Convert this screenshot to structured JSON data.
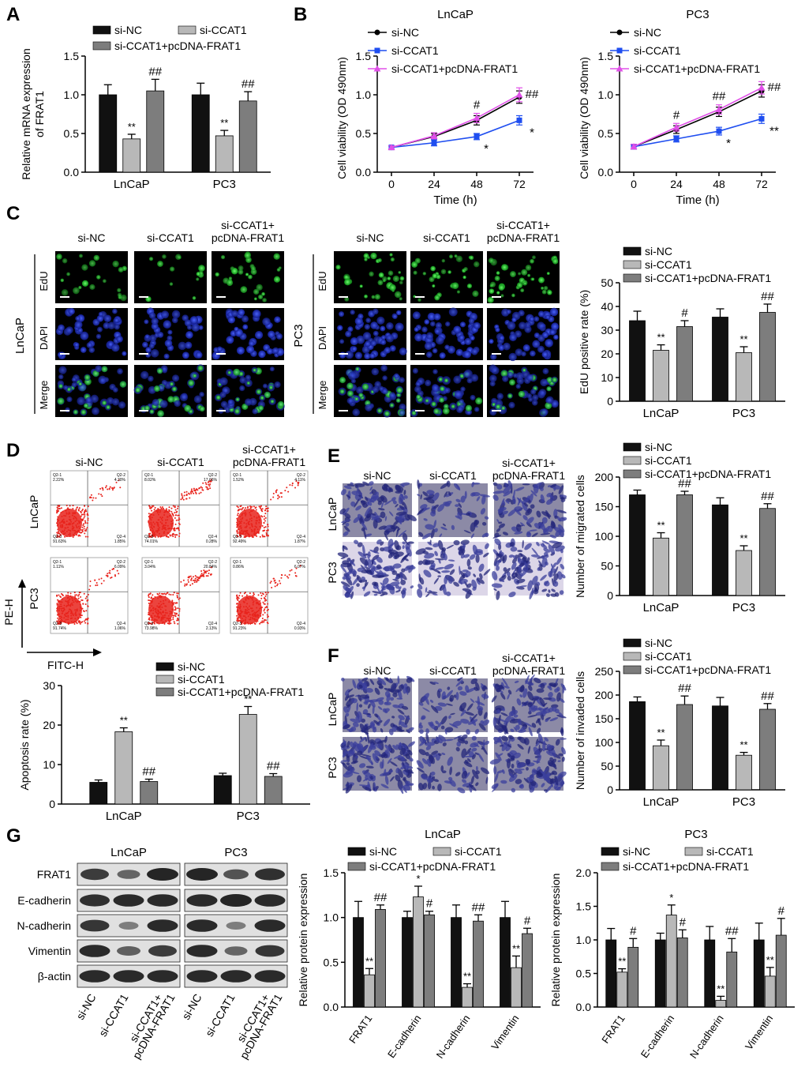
{
  "panel_labels": [
    "A",
    "B",
    "C",
    "D",
    "E",
    "F",
    "G"
  ],
  "colors": {
    "black": "#111111",
    "gray": "#b8b8b8",
    "dgray": "#7d7d7d",
    "blue": "#1f4ef0",
    "magenta": "#e050e8",
    "flow": "#e8231c"
  },
  "micrograph_labels": {
    "c_cols": [
      [
        "si-NC"
      ],
      [
        "si-CCAT1"
      ],
      [
        "si-CCAT1+",
        "pcDNA-FRAT1"
      ]
    ],
    "c_rows": [
      "EdU",
      "DAPI",
      "Merge"
    ],
    "cell_lines": [
      "LnCaP",
      "PC3"
    ]
  },
  "flow_labels": {
    "cols": [
      [
        "si-NC"
      ],
      [
        "si-CCAT1"
      ],
      [
        "si-CCAT1+",
        "pcDNA-FRAT1"
      ]
    ],
    "rows": [
      "LnCaP",
      "PC3"
    ],
    "ylabel": "PE-H",
    "xlabel": "FITC-H",
    "quadrants": [
      [
        [
          "2.22%",
          "4.30%",
          "91.63%",
          "1.85%"
        ],
        [
          "8.02%",
          "17.66%",
          "74.01%",
          "0.28%"
        ],
        [
          "1.52%",
          "4.11%",
          "92.49%",
          "1.87%"
        ]
      ],
      [
        [
          "1.11%",
          "6.09%",
          "91.74%",
          "1.06%"
        ],
        [
          "3.04%",
          "20.84%",
          "73.98%",
          "2.13%"
        ],
        [
          "0.86%",
          "6.07%",
          "91.23%",
          "0.93%"
        ]
      ]
    ],
    "quad_names": [
      "Q2-1",
      "Q2-2",
      "Q2-3",
      "Q2-4"
    ]
  },
  "transwell_labels": {
    "cols": [
      [
        "si-NC"
      ],
      [
        "si-CCAT1"
      ],
      [
        "si-CCAT1+",
        "pcDNA-FRAT1"
      ]
    ],
    "rows": [
      "LnCaP",
      "PC3"
    ]
  },
  "western_labels": {
    "cell_lines": [
      "LnCaP",
      "PC3"
    ],
    "proteins": [
      "FRAT1",
      "E-cadherin",
      "N-cadherin",
      "Vimentin",
      "β-actin"
    ],
    "lanes": [
      "si-NC",
      "si-CCAT1",
      "si-CCAT1+\npcDNA-FRAT1",
      "si-NC",
      "si-CCAT1",
      "si-CCAT1+\npcDNA-FRAT1"
    ]
  },
  "chart_data": [
    {
      "id": "A",
      "type": "bar",
      "legend": [
        "si-NC",
        "si-CCAT1",
        "si-CCAT1+pcDNA-FRAT1"
      ],
      "categories": [
        "LnCaP",
        "PC3"
      ],
      "series": [
        {
          "name": "si-NC",
          "values": [
            1.0,
            1.0
          ],
          "err": [
            0.13,
            0.15
          ],
          "marks": [
            "",
            ""
          ]
        },
        {
          "name": "si-CCAT1",
          "values": [
            0.43,
            0.47
          ],
          "err": [
            0.06,
            0.07
          ],
          "marks": [
            "**",
            "**"
          ]
        },
        {
          "name": "si-CCAT1+pcDNA-FRAT1",
          "values": [
            1.05,
            0.92
          ],
          "err": [
            0.15,
            0.12
          ],
          "marks": [
            "##",
            "##"
          ]
        }
      ],
      "ylabel": "Relative mRNA expression\nof FRAT1",
      "ylim": [
        0,
        1.5
      ],
      "yticks": [
        "0.0",
        "0.5",
        "1.0",
        "1.5"
      ]
    },
    {
      "id": "B1",
      "type": "line",
      "title": "LnCaP",
      "x": [
        0,
        24,
        48,
        72
      ],
      "xticks": [
        "0",
        "24",
        "48",
        "72"
      ],
      "xlabel": "Time (h)",
      "ylabel": "Cell viability (OD 490nm)",
      "ylim": [
        0,
        1.5
      ],
      "yticks": [
        "0.0",
        "0.5",
        "1.0",
        "1.5"
      ],
      "legend": [
        "si-NC",
        "si-CCAT1",
        "si-CCAT1+pcDNA-FRAT1"
      ],
      "series": [
        {
          "name": "si-NC",
          "values": [
            0.32,
            0.46,
            0.67,
            0.97
          ],
          "err": [
            0.02,
            0.04,
            0.06,
            0.08
          ],
          "marks": [
            "",
            "",
            "",
            ""
          ]
        },
        {
          "name": "si-CCAT1",
          "values": [
            0.32,
            0.38,
            0.46,
            0.67
          ],
          "err": [
            0.02,
            0.04,
            0.04,
            0.06
          ],
          "marks": [
            "",
            "",
            "*",
            "*"
          ]
        },
        {
          "name": "si-CCAT1+pcDNA-FRAT1",
          "values": [
            0.32,
            0.47,
            0.7,
            1.0
          ],
          "err": [
            0.02,
            0.04,
            0.06,
            0.09
          ],
          "marks": [
            "",
            "",
            "#",
            "##"
          ]
        }
      ]
    },
    {
      "id": "B2",
      "type": "line",
      "title": "PC3",
      "x": [
        0,
        24,
        48,
        72
      ],
      "xticks": [
        "0",
        "24",
        "48",
        "72"
      ],
      "xlabel": "Time (h)",
      "ylabel": "Cell viability (OD 490nm)",
      "ylim": [
        0,
        1.5
      ],
      "yticks": [
        "0.0",
        "0.5",
        "1.0",
        "1.5"
      ],
      "legend": [
        "si-NC",
        "si-CCAT1",
        "si-CCAT1+pcDNA-FRAT1"
      ],
      "series": [
        {
          "name": "si-NC",
          "values": [
            0.33,
            0.55,
            0.78,
            1.05
          ],
          "err": [
            0.03,
            0.05,
            0.06,
            0.08
          ],
          "marks": [
            "",
            "",
            "",
            ""
          ]
        },
        {
          "name": "si-CCAT1",
          "values": [
            0.33,
            0.43,
            0.53,
            0.69
          ],
          "err": [
            0.03,
            0.04,
            0.05,
            0.06
          ],
          "marks": [
            "",
            "",
            "*",
            "**"
          ]
        },
        {
          "name": "si-CCAT1+pcDNA-FRAT1",
          "values": [
            0.33,
            0.58,
            0.81,
            1.09
          ],
          "err": [
            0.03,
            0.05,
            0.06,
            0.08
          ],
          "marks": [
            "",
            "#",
            "##",
            "##"
          ]
        }
      ]
    },
    {
      "id": "C",
      "type": "bar",
      "legend": [
        "si-NC",
        "si-CCAT1",
        "si-CCAT1+pcDNA-FRAT1"
      ],
      "categories": [
        "LnCaP",
        "PC3"
      ],
      "series": [
        {
          "name": "si-NC",
          "values": [
            34,
            35.5
          ],
          "err": [
            4,
            3.5
          ],
          "marks": [
            "",
            ""
          ]
        },
        {
          "name": "si-CCAT1",
          "values": [
            21.5,
            20.5
          ],
          "err": [
            2.3,
            2.5
          ],
          "marks": [
            "**",
            "**"
          ]
        },
        {
          "name": "si-CCAT1+pcDNA-FRAT1",
          "values": [
            31.5,
            37.5
          ],
          "err": [
            2.5,
            3.5
          ],
          "marks": [
            "#",
            "##"
          ]
        }
      ],
      "ylabel": "EdU positive rate (%)",
      "ylim": [
        0,
        50
      ],
      "yticks": [
        "0",
        "10",
        "20",
        "30",
        "40",
        "50"
      ]
    },
    {
      "id": "D",
      "type": "bar",
      "legend": [
        "si-NC",
        "si-CCAT1",
        "si-CCAT1+pcDNA-FRAT1"
      ],
      "categories": [
        "LnCaP",
        "PC3"
      ],
      "series": [
        {
          "name": "si-NC",
          "values": [
            5.5,
            7.2
          ],
          "err": [
            0.6,
            0.6
          ],
          "marks": [
            "",
            ""
          ]
        },
        {
          "name": "si-CCAT1",
          "values": [
            18.3,
            22.7
          ],
          "err": [
            1.0,
            2.0
          ],
          "marks": [
            "**",
            "**"
          ]
        },
        {
          "name": "si-CCAT1+pcDNA-FRAT1",
          "values": [
            5.7,
            7.0
          ],
          "err": [
            0.6,
            0.7
          ],
          "marks": [
            "##",
            "##"
          ]
        }
      ],
      "ylabel": "Apoptosis rate (%)",
      "ylim": [
        0,
        30
      ],
      "yticks": [
        "0",
        "10",
        "20",
        "30"
      ]
    },
    {
      "id": "E",
      "type": "bar",
      "legend": [
        "si-NC",
        "si-CCAT1",
        "si-CCAT1+pcDNA-FRAT1"
      ],
      "categories": [
        "LnCaP",
        "PC3"
      ],
      "series": [
        {
          "name": "si-NC",
          "values": [
            170,
            153
          ],
          "err": [
            8,
            12
          ],
          "marks": [
            "",
            ""
          ]
        },
        {
          "name": "si-CCAT1",
          "values": [
            97,
            76
          ],
          "err": [
            9,
            8
          ],
          "marks": [
            "**",
            "**"
          ]
        },
        {
          "name": "si-CCAT1+pcDNA-FRAT1",
          "values": [
            170,
            147
          ],
          "err": [
            6,
            8
          ],
          "marks": [
            "##",
            "##"
          ]
        }
      ],
      "ylabel": "Number of migrated cells",
      "ylim": [
        0,
        200
      ],
      "yticks": [
        "0",
        "50",
        "100",
        "150",
        "200"
      ]
    },
    {
      "id": "F",
      "type": "bar",
      "legend": [
        "si-NC",
        "si-CCAT1",
        "si-CCAT1+pcDNA-FRAT1"
      ],
      "categories": [
        "LnCaP",
        "PC3"
      ],
      "series": [
        {
          "name": "si-NC",
          "values": [
            186,
            177
          ],
          "err": [
            10,
            18
          ],
          "marks": [
            "",
            ""
          ]
        },
        {
          "name": "si-CCAT1",
          "values": [
            93,
            73
          ],
          "err": [
            12,
            6
          ],
          "marks": [
            "**",
            "**"
          ]
        },
        {
          "name": "si-CCAT1+pcDNA-FRAT1",
          "values": [
            180,
            170
          ],
          "err": [
            18,
            12
          ],
          "marks": [
            "##",
            "##"
          ]
        }
      ],
      "ylabel": "Number of invaded cells",
      "ylim": [
        0,
        250
      ],
      "yticks": [
        "0",
        "50",
        "100",
        "150",
        "200",
        "250"
      ]
    },
    {
      "id": "G1",
      "type": "bar",
      "title": "LnCaP",
      "legend": [
        "si-NC",
        "si-CCAT1",
        "si-CCAT1+pcDNA-FRAT1"
      ],
      "categories": [
        "FRAT1",
        "E-cadherin",
        "N-cadherin",
        "Vimentin"
      ],
      "series": [
        {
          "name": "si-NC",
          "values": [
            1.0,
            1.0,
            1.0,
            1.0
          ],
          "err": [
            0.18,
            0.07,
            0.14,
            0.18
          ],
          "marks": [
            "",
            "",
            "",
            ""
          ]
        },
        {
          "name": "si-CCAT1",
          "values": [
            0.36,
            1.23,
            0.22,
            0.44
          ],
          "err": [
            0.07,
            0.12,
            0.04,
            0.13
          ],
          "marks": [
            "**",
            "*",
            "**",
            "**"
          ]
        },
        {
          "name": "si-CCAT1+pcDNA-FRAT1",
          "values": [
            1.09,
            1.03,
            0.96,
            0.82
          ],
          "err": [
            0.05,
            0.04,
            0.07,
            0.06
          ],
          "marks": [
            "##",
            "#",
            "##",
            "#"
          ]
        }
      ],
      "ylabel": "Relative protein expression",
      "ylim": [
        0,
        1.5
      ],
      "yticks": [
        "0.0",
        "0.5",
        "1.0",
        "1.5"
      ]
    },
    {
      "id": "G2",
      "type": "bar",
      "title": "PC3",
      "legend": [
        "si-NC",
        "si-CCAT1",
        "si-CCAT1+pcDNA-FRAT1"
      ],
      "categories": [
        "FRAT1",
        "E-cadherin",
        "N-cadherin",
        "Vimentin"
      ],
      "series": [
        {
          "name": "si-NC",
          "values": [
            1.0,
            1.0,
            1.0,
            1.0
          ],
          "err": [
            0.17,
            0.1,
            0.2,
            0.25
          ],
          "marks": [
            "",
            "",
            "",
            ""
          ]
        },
        {
          "name": "si-CCAT1",
          "values": [
            0.52,
            1.37,
            0.1,
            0.46
          ],
          "err": [
            0.05,
            0.15,
            0.06,
            0.13
          ],
          "marks": [
            "**",
            "*",
            "**",
            "**"
          ]
        },
        {
          "name": "si-CCAT1+pcDNA-FRAT1",
          "values": [
            0.89,
            1.03,
            0.82,
            1.07
          ],
          "err": [
            0.13,
            0.12,
            0.2,
            0.25
          ],
          "marks": [
            "#",
            "#",
            "##",
            "#"
          ]
        }
      ],
      "ylabel": "Relative protein expression",
      "ylim": [
        0,
        2.0
      ],
      "yticks": [
        "0.0",
        "0.5",
        "1.0",
        "1.5",
        "2.0"
      ]
    }
  ]
}
